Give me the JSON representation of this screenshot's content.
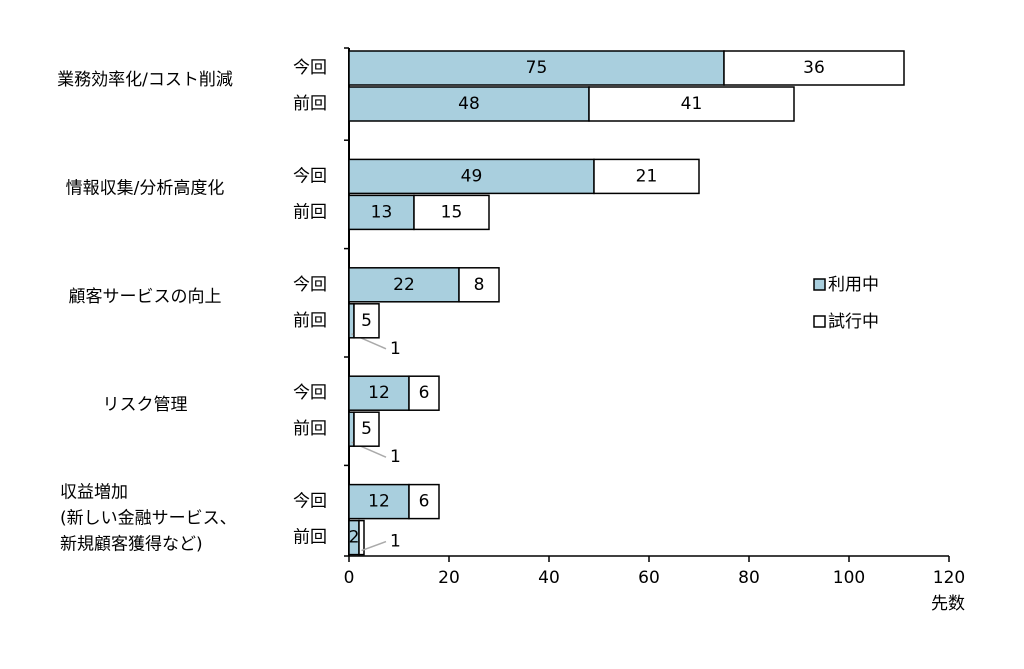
{
  "chart_data": {
    "type": "stacked-bar-horizontal",
    "groups": [
      [
        "業務効率化/コスト削減"
      ],
      [
        "情報収集/分析高度化"
      ],
      [
        "顧客サービスの向上"
      ],
      [
        "リスク管理"
      ],
      [
        "収益増加",
        "(新しい金融サービス、",
        "新規顧客獲得など)"
      ]
    ],
    "categories": [
      "今回",
      "前回",
      "今回",
      "前回",
      "今回",
      "前回",
      "今回",
      "前回",
      "今回",
      "前回"
    ],
    "series": [
      {
        "name": "利用中",
        "color": "#a9cfde",
        "values": [
          75,
          48,
          49,
          13,
          22,
          1,
          12,
          1,
          12,
          2
        ]
      },
      {
        "name": "試行中",
        "color": "#ffffff",
        "values": [
          36,
          41,
          21,
          15,
          8,
          5,
          6,
          5,
          6,
          1
        ]
      }
    ],
    "xlim": [
      0,
      120
    ],
    "xticks": [
      0,
      20,
      40,
      60,
      80,
      100,
      120
    ],
    "xlabel": "先数"
  }
}
